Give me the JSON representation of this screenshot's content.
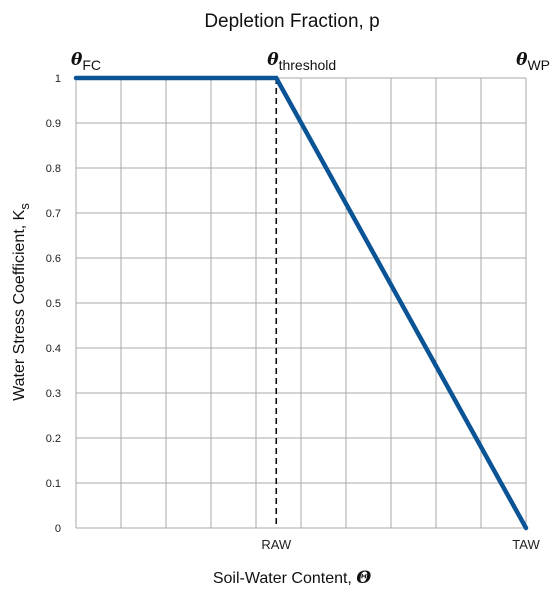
{
  "chart_data": {
    "type": "line",
    "title": "Depletion Fraction, p",
    "xlabel": "Soil-Water Content, ",
    "xlabel_symbol": "Θ",
    "ylabel": "Water Stress Coefficient, K",
    "ylabel_subscript": "s",
    "ylim": [
      0,
      1
    ],
    "y_ticks": [
      "0",
      "0.1",
      "0.2",
      "0.3",
      "0.4",
      "0.5",
      "0.6",
      "0.7",
      "0.8",
      "0.9",
      "1"
    ],
    "x_domain": [
      0,
      10
    ],
    "x_grid_divisions": 10,
    "x_ticks": [
      {
        "label": "RAW",
        "x": 4.45
      },
      {
        "label": "TAW",
        "x": 10
      }
    ],
    "top_markers": [
      {
        "symbol": "θ",
        "subscript": "FC",
        "x": 0
      },
      {
        "symbol": "θ",
        "subscript": "threshold",
        "x": 4.45
      },
      {
        "symbol": "θ",
        "subscript": "WP",
        "x": 10
      }
    ],
    "series": [
      {
        "color": "#0a5496",
        "points": [
          [
            0,
            1
          ],
          [
            4.45,
            1
          ],
          [
            10,
            0
          ]
        ]
      }
    ],
    "threshold_line": {
      "x": 4.45,
      "style": "dashed"
    },
    "grid": true
  }
}
